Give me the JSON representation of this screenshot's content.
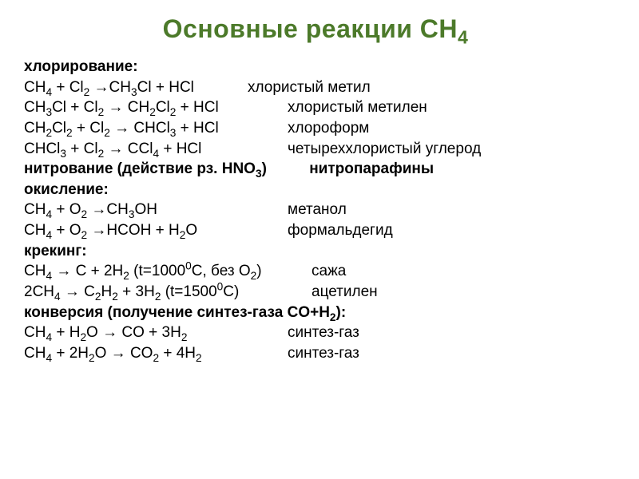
{
  "title": "Основные реакции CH₄",
  "sections": {
    "chlorination": {
      "label": "хлорирование:",
      "r1_lhs": "CH₄ + Cl₂ →CH₃Cl + HCl",
      "r1_name": "хлористый метил",
      "r2_lhs": "CH₃Cl + Cl₂ → CH₂Cl₂ + HCl",
      "r2_name": "хлористый метилен",
      "r3_lhs": "CH₂Cl₂ + Cl₂ → CHCl₃ + HCl",
      "r3_name": "хлороформ",
      "r4_lhs": "CHCl₃ + Cl₂ → CCl₄ + HCl",
      "r4_name": "четыреххлористый углерод"
    },
    "nitration": {
      "label": "нитрование (действие рз. HNO₃)",
      "extra": "нитропарафины"
    },
    "oxidation": {
      "label": "окисление:",
      "r1_lhs": "CH₄ + O₂ →CH₃OH",
      "r1_name": "метанол",
      "r2_lhs": "CH₄ + O₂ →HCOH + H₂O",
      "r2_name": "формальдегид"
    },
    "cracking": {
      "label": "крекинг:",
      "r1_lhs": "CH₄ → C + 2H₂ (t=1000⁰C, без O₂)",
      "r1_name": "сажа",
      "r2_lhs": "2CH₄ → C₂H₂ + 3H₂ (t=1500⁰C)",
      "r2_name": "ацетилен"
    },
    "conversion": {
      "label": "конверсия (получение синтез-газа CO+H₂):",
      "r1_lhs": "CH₄ + H₂O → CO + 3H₂",
      "r1_name": "синтез-газ",
      "r2_lhs": "CH₄ + 2H₂O → CO₂ + 4H₂",
      "r2_name": "синтез-газ"
    }
  }
}
